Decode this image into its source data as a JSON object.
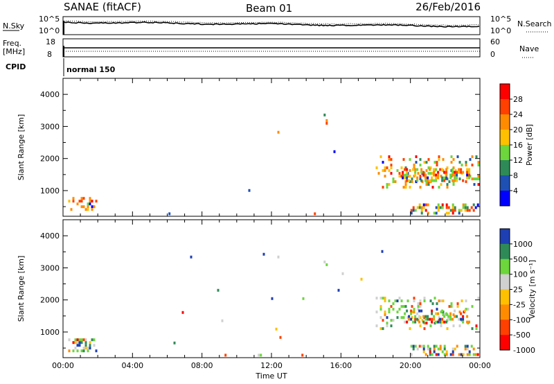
{
  "header": {
    "station": "SANAE (fitACF)",
    "beam": "Beam 01",
    "date": "26/Feb/2016"
  },
  "top_panels": {
    "nsky_label": "N.Sky",
    "nsearch_label": "N.Search",
    "nsky_ticks": [
      "10^5",
      "10^0"
    ],
    "nsearch_ticks": [
      "10^5",
      "10^0"
    ],
    "freq_label_1": "Freq.",
    "freq_label_2": "[MHz]",
    "freq_ticks": [
      "18",
      "8"
    ],
    "nave_label": "Nave",
    "nave_ticks": [
      "60",
      "0"
    ],
    "cpid_label": "CPID",
    "cpid_value": "normal 150"
  },
  "chart_data": [
    {
      "type": "heatmap",
      "name": "power",
      "ylabel": "Slant Range [km]",
      "xlabel": "",
      "xlim": [
        0,
        24
      ],
      "ylim": [
        200,
        4500
      ],
      "yticks": [
        1000,
        2000,
        3000,
        4000
      ],
      "ytick_labels": [
        "1000",
        "2000",
        "3000",
        "4000"
      ],
      "colorbar_label": "Power [dB]",
      "colorbar_ticks": [
        "28",
        "24",
        "20",
        "16",
        "12",
        "8",
        "4"
      ],
      "colorbar_colors": [
        "#ff0000",
        "#ff4000",
        "#ff8c00",
        "#ffc000",
        "#6cd63c",
        "#2e8b57",
        "#1e50b4",
        "#0000ff"
      ],
      "regions": [
        {
          "x": [
            0.3,
            2.0
          ],
          "y": [
            300,
            800
          ],
          "dens": 0.35,
          "cw": [
            0.1,
            0.5,
            0.2,
            0.1,
            0.1
          ]
        },
        {
          "x": [
            18.0,
            24.0
          ],
          "y": [
            1000,
            2100
          ],
          "dens": 0.2,
          "cw": [
            0.05,
            0.4,
            0.3,
            0.2,
            0.05
          ]
        },
        {
          "x": [
            19.5,
            23.5
          ],
          "y": [
            1200,
            1700
          ],
          "dens": 0.45,
          "cw": [
            0.05,
            0.5,
            0.3,
            0.1,
            0.05
          ]
        },
        {
          "x": [
            20.0,
            24.0
          ],
          "y": [
            220,
            600
          ],
          "dens": 0.4,
          "cw": [
            0.2,
            0.3,
            0.2,
            0.2,
            0.1
          ]
        },
        {
          "x": [
            2.0,
            18.0
          ],
          "y": [
            220,
            320
          ],
          "dens": 0.03,
          "cw": [
            0.3,
            0.3,
            0.2,
            0.1,
            0.1
          ]
        },
        {
          "x": [
            6.0,
            19.0
          ],
          "y": [
            400,
            3900
          ],
          "dens": 0.0015,
          "cw": [
            0.3,
            0.2,
            0.3,
            0.1,
            0.1
          ]
        },
        {
          "x": [
            15.0,
            15.3
          ],
          "y": [
            3000,
            3400
          ],
          "dens": 0.2,
          "cw": [
            0.1,
            0.4,
            0.4,
            0.1,
            0
          ]
        }
      ]
    },
    {
      "type": "heatmap",
      "name": "velocity",
      "ylabel": "Slant Range [km]",
      "xlabel": "Time UT",
      "xlim": [
        0,
        24
      ],
      "ylim": [
        200,
        4500
      ],
      "xticks": [
        0,
        4,
        8,
        12,
        16,
        20,
        24
      ],
      "xtick_labels": [
        "00:00",
        "04:00",
        "08:00",
        "12:00",
        "16:00",
        "20:00",
        "00:00"
      ],
      "yticks": [
        1000,
        2000,
        3000,
        4000
      ],
      "ytick_labels": [
        "1000",
        "2000",
        "3000",
        "4000"
      ],
      "colorbar_label": "Velocity [m s⁻¹]",
      "colorbar_ticks": [
        "1000",
        "500",
        "100",
        "25",
        "-25",
        "-100",
        "-500",
        "-1000"
      ],
      "colorbar_colors": [
        "#1e3fb4",
        "#2e8b57",
        "#6cd63c",
        "#d0d0d0",
        "#ffc000",
        "#ff8c00",
        "#ff4000",
        "#ff0000"
      ],
      "regions": [
        {
          "x": [
            0.3,
            2.0
          ],
          "y": [
            300,
            800
          ],
          "dens": 0.35,
          "cw": [
            0.3,
            0.2,
            0.3,
            0.1,
            0.1
          ]
        },
        {
          "x": [
            18.0,
            24.0
          ],
          "y": [
            1000,
            2100
          ],
          "dens": 0.2,
          "cw": [
            0.05,
            0.4,
            0.3,
            0.2,
            0.05
          ]
        },
        {
          "x": [
            19.5,
            23.5
          ],
          "y": [
            1200,
            1700
          ],
          "dens": 0.45,
          "cw": [
            0.3,
            0.3,
            0.1,
            0.2,
            0.1
          ]
        },
        {
          "x": [
            20.0,
            24.0
          ],
          "y": [
            220,
            600
          ],
          "dens": 0.4,
          "cw": [
            0.2,
            0.2,
            0.1,
            0.4,
            0.1
          ]
        },
        {
          "x": [
            2.0,
            18.0
          ],
          "y": [
            220,
            320
          ],
          "dens": 0.03,
          "cw": [
            0.3,
            0.3,
            0.2,
            0.1,
            0.1
          ]
        },
        {
          "x": [
            6.0,
            19.0
          ],
          "y": [
            400,
            3900
          ],
          "dens": 0.0015,
          "cw": [
            0.3,
            0.2,
            0.3,
            0.1,
            0.1
          ]
        },
        {
          "x": [
            15.0,
            15.3
          ],
          "y": [
            3000,
            3400
          ],
          "dens": 0.2,
          "cw": [
            0.2,
            0.5,
            0.3,
            0,
            0
          ]
        }
      ]
    }
  ]
}
